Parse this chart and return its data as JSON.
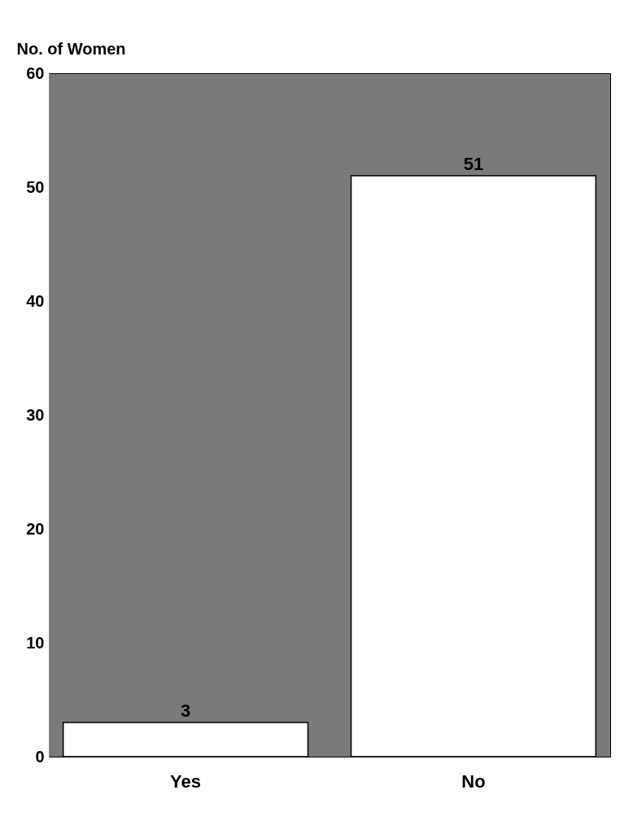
{
  "chart_data": {
    "type": "bar",
    "ylabel": "No. of Women",
    "categories": [
      "Yes",
      "No"
    ],
    "series": [
      {
        "color": "#ffffff",
        "values": [
          3,
          51
        ]
      }
    ],
    "ylim": [
      0,
      60
    ],
    "yticks": [
      0,
      10,
      20,
      30,
      40,
      50,
      60
    ],
    "data_labels": true,
    "grid": false
  }
}
